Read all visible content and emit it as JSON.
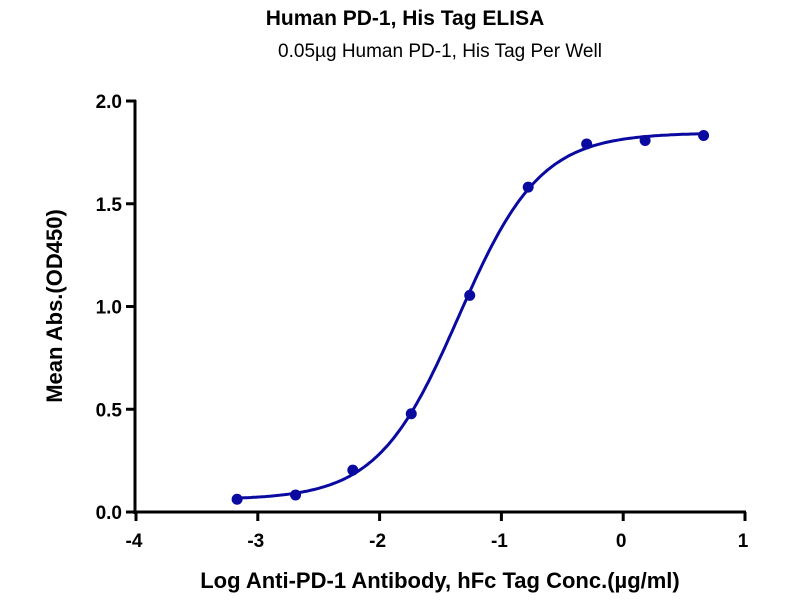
{
  "chart_data": {
    "type": "scatter",
    "title": "Human PD-1, His Tag ELISA",
    "subtitle": "0.05µg Human PD-1, His Tag  Per Well",
    "xlabel": "Log Anti-PD-1 Antibody, hFc Tag Conc.(µg/ml)",
    "ylabel": "Mean Abs.(OD450)",
    "xlim": [
      -4,
      1
    ],
    "ylim": [
      0,
      2.0
    ],
    "xticks": [
      "-4",
      "-3",
      "-2",
      "-1",
      "0",
      "1"
    ],
    "yticks": [
      "0.0",
      "0.5",
      "1.0",
      "1.5",
      "2.0"
    ],
    "grid": false,
    "color": "#0a0aa0",
    "series": [
      {
        "name": "Mean Abs.",
        "x": [
          -3.17,
          -2.69,
          -2.22,
          -1.74,
          -1.26,
          -0.78,
          -0.3,
          0.18,
          0.66
        ],
        "y": [
          0.062,
          0.083,
          0.204,
          0.478,
          1.054,
          1.581,
          1.791,
          1.808,
          1.832
        ]
      }
    ],
    "fit": {
      "type": "4PL",
      "bottom": 0.06,
      "top": 1.845,
      "logEC50": -1.35,
      "hill": 1.3
    }
  }
}
